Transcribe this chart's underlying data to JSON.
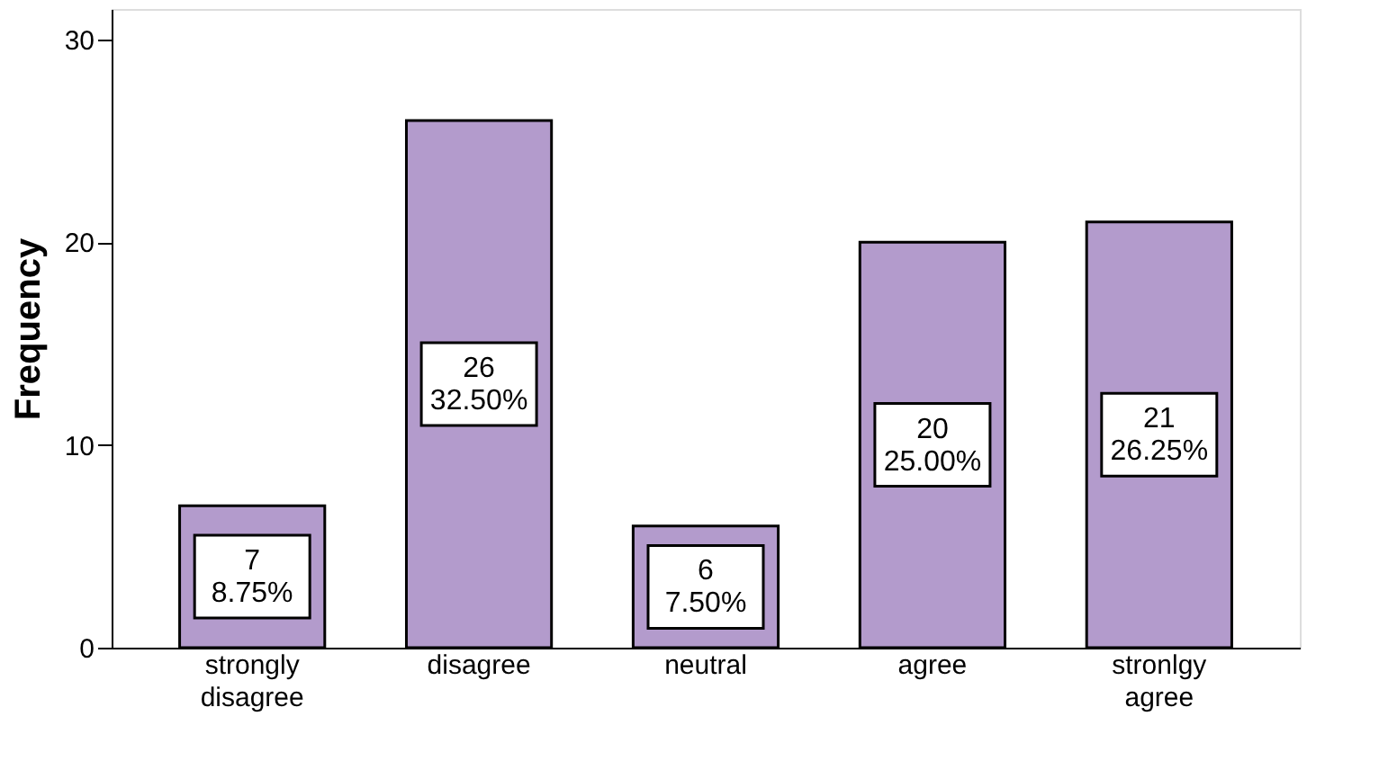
{
  "chart_data": {
    "type": "bar",
    "ylabel": "Frequency",
    "categories": [
      "strongly disagree",
      "disagree",
      "neutral",
      "agree",
      "stronlgy agree"
    ],
    "values": [
      7,
      26,
      6,
      20,
      21
    ],
    "value_labels": [
      "7\n8.75%",
      "26\n32.50%",
      "6\n7.50%",
      "20\n25.00%",
      "21\n26.25%"
    ],
    "color": "#b39bcc",
    "ylim": [
      0,
      31.5
    ],
    "yticks": [
      0,
      10,
      20,
      30
    ],
    "grid": false
  }
}
